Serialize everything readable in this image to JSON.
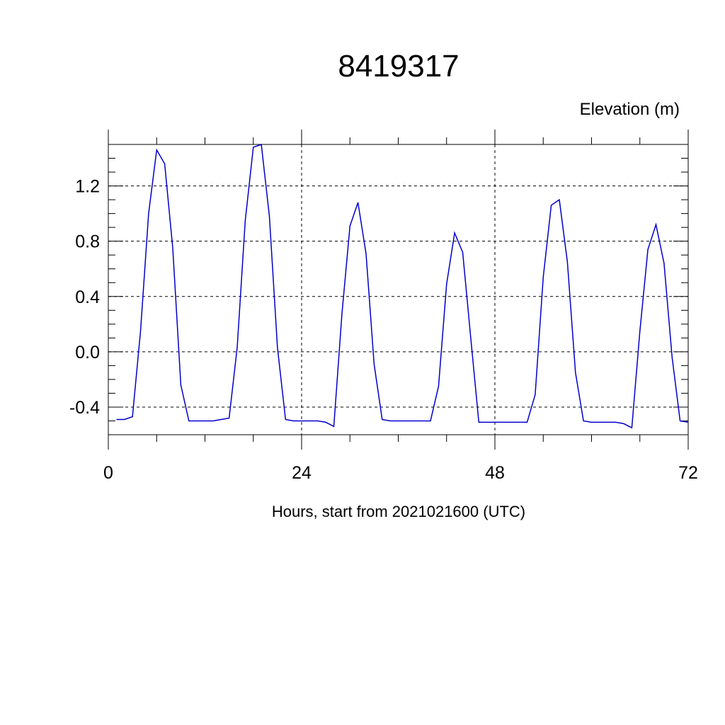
{
  "chart_data": {
    "type": "line",
    "title": "8419317",
    "ylabel": "Elevation (m)",
    "xlabel": "Hours, start from 2021021600 (UTC)",
    "xlim": [
      0,
      72
    ],
    "ylim": [
      -0.6,
      1.5
    ],
    "x_ticks": [
      0,
      24,
      48,
      72
    ],
    "x_tick_labels": [
      "0",
      "24",
      "48",
      "72"
    ],
    "y_ticks": [
      -0.4,
      0.0,
      0.4,
      0.8,
      1.2
    ],
    "y_tick_labels": [
      "-0.4",
      "0.0",
      "0.4",
      "0.8",
      "1.2"
    ],
    "grid": true,
    "line_color": "#0000cc",
    "series": [
      {
        "x": [
          1,
          2,
          3,
          4,
          5,
          6,
          7,
          8,
          9,
          10,
          11,
          12,
          13,
          14,
          15,
          16,
          17,
          18,
          19,
          20,
          21,
          22,
          23,
          24,
          25,
          26,
          27,
          28,
          29,
          30,
          31,
          32,
          33,
          34,
          35,
          36,
          37,
          38,
          39,
          40,
          41,
          42,
          43,
          44,
          45,
          46,
          47,
          48,
          49,
          50,
          51,
          52,
          53,
          54,
          55,
          56,
          57,
          58,
          59,
          60,
          61,
          62,
          63,
          64,
          65,
          66,
          67,
          68,
          69,
          70,
          71,
          72
        ],
        "y": [
          -0.49,
          -0.49,
          -0.47,
          0.15,
          1.0,
          1.46,
          1.36,
          0.75,
          -0.24,
          -0.5,
          -0.5,
          -0.5,
          -0.5,
          -0.49,
          -0.48,
          0.03,
          0.95,
          1.48,
          1.5,
          0.98,
          0.03,
          -0.49,
          -0.5,
          -0.5,
          -0.5,
          -0.5,
          -0.51,
          -0.54,
          0.27,
          0.91,
          1.08,
          0.71,
          -0.09,
          -0.49,
          -0.5,
          -0.5,
          -0.5,
          -0.5,
          -0.5,
          -0.5,
          -0.25,
          0.49,
          0.86,
          0.72,
          0.1,
          -0.51,
          -0.51,
          -0.51,
          -0.51,
          -0.51,
          -0.51,
          -0.51,
          -0.31,
          0.54,
          1.06,
          1.1,
          0.65,
          -0.15,
          -0.5,
          -0.51,
          -0.51,
          -0.51,
          -0.51,
          -0.52,
          -0.55,
          0.15,
          0.74,
          0.92,
          0.64,
          -0.04,
          -0.5,
          -0.51
        ]
      }
    ]
  }
}
